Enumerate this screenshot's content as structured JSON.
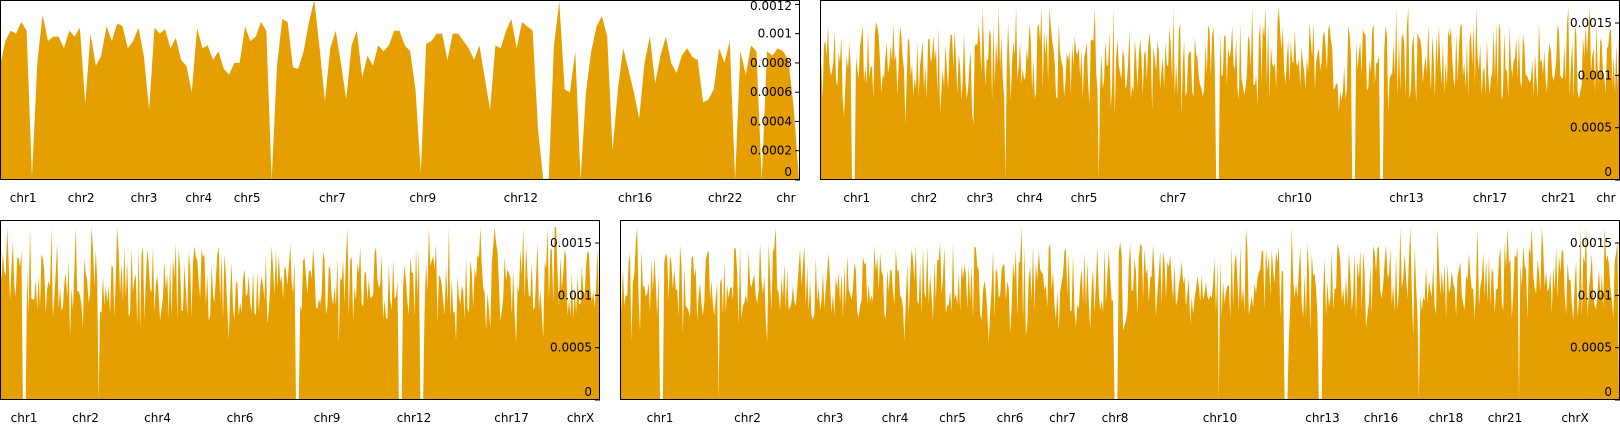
{
  "colors": {
    "fill": "#E69F00",
    "frame": "#000000",
    "background": "#ffffff"
  },
  "chart_data": [
    {
      "type": "area",
      "title": "",
      "xlabel": "",
      "ylabel": "",
      "ylim": [
        0,
        0.00123
      ],
      "yticks": [
        "0",
        "0.0002",
        "0.0004",
        "0.0006",
        "0.0008",
        "0.001",
        "0.0012"
      ],
      "ytick_values": [
        0,
        0.0002,
        0.0004,
        0.0006,
        0.0008,
        0.001,
        0.0012
      ],
      "y_axis_side": "right",
      "chromosomes": [
        "chr1",
        "chr2",
        "chr3",
        "chr4",
        "chr5",
        "chr7",
        "chr9",
        "chr12",
        "chr16",
        "chr22",
        "chr"
      ],
      "chromosome_starts": [
        0.0,
        0.058,
        0.145,
        0.215,
        0.282,
        0.336,
        0.495,
        0.562,
        0.74,
        0.848,
        0.965
      ],
      "values": [
        0.00078,
        0.00095,
        0.00102,
        0.001,
        0.00108,
        0.00102,
        2e-05,
        0.0008,
        0.00113,
        0.00095,
        0.00098,
        0.00098,
        0.0009,
        0.00102,
        0.00098,
        0.00104,
        0.00052,
        0.001,
        0.00078,
        0.00085,
        0.00105,
        0.00095,
        0.00107,
        0.00105,
        0.0009,
        0.00095,
        0.00104,
        0.00085,
        0.00048,
        0.00104,
        0.001,
        0.00103,
        0.0009,
        0.00097,
        0.00082,
        0.00078,
        0.0006,
        0.00104,
        0.0009,
        0.00092,
        0.00082,
        0.00088,
        0.00076,
        0.00072,
        0.0008,
        0.0008,
        0.00105,
        0.00095,
        0.00098,
        0.00108,
        0.00102,
        0.0,
        0.00078,
        0.0011,
        0.00108,
        0.00077,
        0.00076,
        0.00088,
        0.00108,
        0.00123,
        0.0009,
        0.00054,
        0.0009,
        0.00102,
        0.0008,
        0.00055,
        0.00092,
        0.00102,
        0.0007,
        0.00085,
        0.00078,
        0.00092,
        0.00088,
        0.00092,
        0.00102,
        0.00102,
        0.00092,
        0.00088,
        0.00062,
        5e-05,
        0.00093,
        0.00095,
        0.001,
        0.001,
        0.00082,
        0.001,
        0.001,
        0.00095,
        0.0009,
        0.00082,
        0.00092,
        0.0007,
        0.00048,
        0.00092,
        0.0009,
        0.00102,
        0.0011,
        0.0009,
        0.00108,
        0.00105,
        0.00102,
        0.00035,
        0.0,
        0.0,
        0.00092,
        0.00122,
        0.00062,
        0.0006,
        0.00088,
        0.0,
        0.0006,
        0.00088,
        0.00105,
        0.00112,
        0.00098,
        0.0002,
        0.00062,
        0.0009,
        0.00075,
        0.0006,
        0.00042,
        0.0008,
        0.00098,
        0.00066,
        0.00085,
        0.00098,
        0.0008,
        0.00073,
        0.00085,
        0.0009,
        0.00084,
        0.00082,
        0.00053,
        0.00055,
        0.00062,
        0.0009,
        0.0008,
        0.00095,
        0.0,
        0.00088,
        0.00072,
        0.00092,
        0.00088,
        0.0,
        0.00088,
        0.00085,
        0.0009,
        0.00088,
        0.00082,
        0.0005,
        0.0
      ]
    },
    {
      "type": "area",
      "title": "",
      "xlabel": "",
      "ylabel": "",
      "ylim": [
        0,
        0.00172
      ],
      "yticks": [
        "0",
        "0.0005",
        "0.001",
        "0.0015"
      ],
      "ytick_values": [
        0,
        0.0005,
        0.001,
        0.0015
      ],
      "y_axis_side": "right",
      "chromosomes": [
        "chr1",
        "chr2",
        "chr3",
        "chr4",
        "chr5",
        "chr7",
        "chr10",
        "chr13",
        "chr17",
        "chr21",
        "chr"
      ],
      "chromosome_starts": [
        0.0,
        0.092,
        0.168,
        0.232,
        0.292,
        0.368,
        0.515,
        0.672,
        0.794,
        0.881,
        0.965
      ]
    },
    {
      "type": "area",
      "title": "",
      "xlabel": "",
      "ylabel": "",
      "ylim": [
        0,
        0.00172
      ],
      "yticks": [
        "0",
        "0.0005",
        "0.001",
        "0.0015"
      ],
      "ytick_values": [
        0,
        0.0005,
        0.001,
        0.0015
      ],
      "y_axis_side": "right",
      "chromosomes": [
        "chr1",
        "chr2",
        "chr4",
        "chr6",
        "chr9",
        "chr12",
        "chr17",
        "chrX"
      ],
      "chromosome_starts": [
        0.0,
        0.08,
        0.205,
        0.32,
        0.48,
        0.61,
        0.77,
        0.935
      ]
    },
    {
      "type": "area",
      "title": "",
      "xlabel": "",
      "ylabel": "",
      "ylim": [
        0,
        0.00172
      ],
      "yticks": [
        "0",
        "0.0005",
        "0.001",
        "0.0015"
      ],
      "ytick_values": [
        0,
        0.0005,
        0.001,
        0.0015
      ],
      "y_axis_side": "right",
      "chromosomes": [
        "chr1",
        "chr2",
        "chr3",
        "chr4",
        "chr5",
        "chr6",
        "chr7",
        "chr8",
        "chr10",
        "chr13",
        "chr16",
        "chr18",
        "chr21",
        "chrX"
      ],
      "chromosome_starts": [
        0.0,
        0.08,
        0.175,
        0.245,
        0.305,
        0.36,
        0.42,
        0.465,
        0.525,
        0.675,
        0.73,
        0.792,
        0.86,
        0.91
      ]
    }
  ]
}
